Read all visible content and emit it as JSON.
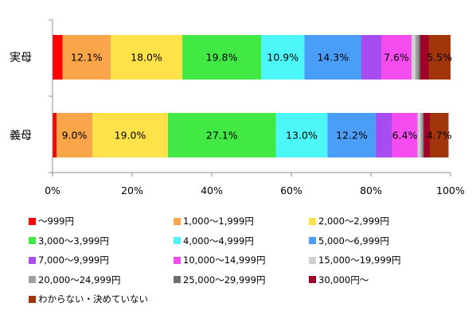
{
  "chart_data": {
    "type": "bar",
    "orientation": "horizontal",
    "stacked": "percent",
    "categories": [
      "実母",
      "義母"
    ],
    "x_ticks": [
      "0%",
      "20%",
      "40%",
      "60%",
      "80%",
      "100%"
    ],
    "xlim": [
      0,
      100
    ],
    "grid": false,
    "legend_position": "bottom",
    "series": [
      {
        "name": "～999円",
        "color": "#ff0000",
        "values": [
          2.5,
          1.0
        ],
        "labels": [
          "",
          ""
        ]
      },
      {
        "name": "1,000～1,999円",
        "color": "#f9a64b",
        "values": [
          12.1,
          9.0
        ],
        "labels": [
          "12.1%",
          "9.0%"
        ]
      },
      {
        "name": "2,000～2,999円",
        "color": "#ffe14a",
        "values": [
          18.0,
          19.0
        ],
        "labels": [
          "18.0%",
          "19.0%"
        ]
      },
      {
        "name": "3,000～3,999円",
        "color": "#42e843",
        "values": [
          19.8,
          27.1
        ],
        "labels": [
          "19.8%",
          "27.1%"
        ]
      },
      {
        "name": "4,000～4,999円",
        "color": "#4df7f7",
        "values": [
          10.9,
          13.0
        ],
        "labels": [
          "10.9%",
          "13.0%"
        ]
      },
      {
        "name": "5,000～6,999円",
        "color": "#4a9ef7",
        "values": [
          14.3,
          12.2
        ],
        "labels": [
          "14.3%",
          "12.2%"
        ]
      },
      {
        "name": "7,000～9,999円",
        "color": "#a64cf0",
        "values": [
          5.0,
          4.0
        ],
        "labels": [
          "",
          ""
        ]
      },
      {
        "name": "10,000～14,999円",
        "color": "#f54cf0",
        "values": [
          7.6,
          6.4
        ],
        "labels": [
          "7.6%",
          "6.4%"
        ]
      },
      {
        "name": "15,000～19,999円",
        "color": "#cfcfcf",
        "values": [
          1.0,
          0.8
        ],
        "labels": [
          "",
          ""
        ]
      },
      {
        "name": "20,000～24,999円",
        "color": "#a0a0a0",
        "values": [
          0.7,
          0.5
        ],
        "labels": [
          "",
          ""
        ]
      },
      {
        "name": "25,000～29,999円",
        "color": "#707070",
        "values": [
          0.5,
          0.3
        ],
        "labels": [
          "",
          ""
        ]
      },
      {
        "name": "30,000円～",
        "color": "#a00028",
        "values": [
          2.1,
          1.5
        ],
        "labels": [
          "",
          ""
        ]
      },
      {
        "name": "わからない・決めていない",
        "color": "#a0360a",
        "values": [
          5.5,
          4.7
        ],
        "labels": [
          "5.5%",
          "4.7%"
        ]
      }
    ]
  }
}
